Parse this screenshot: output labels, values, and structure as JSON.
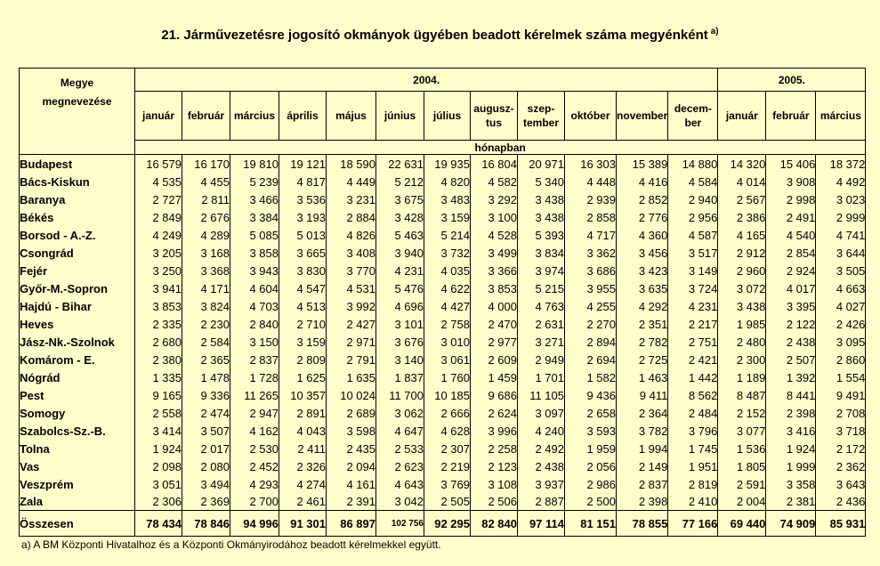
{
  "title": "21. Járművezetésre jogosító okmányok ügyében beadott kérelmek száma megyénként",
  "title_note": "a)",
  "header": {
    "county_label_1": "Megye",
    "county_label_2": "megnevezése",
    "year_2004": "2004.",
    "year_2005": "2005.",
    "unit": "hónapban",
    "months_2004": [
      "január",
      "február",
      "március",
      "április",
      "május",
      "június",
      "július",
      "augusz-\ntus",
      "szep-\ntember",
      "október",
      "november",
      "decem-\nber"
    ],
    "months_2005": [
      "január",
      "február",
      "március"
    ]
  },
  "rows": [
    {
      "name": "Budapest",
      "values": [
        "16 579",
        "16 170",
        "19 810",
        "19 121",
        "18 590",
        "22 631",
        "19 935",
        "16 804",
        "20 971",
        "16 303",
        "15 389",
        "14 880",
        "14 320",
        "15 406",
        "18 372"
      ]
    },
    {
      "name": "Bács-Kiskun",
      "values": [
        "4 535",
        "4 455",
        "5 239",
        "4 817",
        "4 449",
        "5 212",
        "4 820",
        "4 582",
        "5 340",
        "4 448",
        "4 416",
        "4 584",
        "4 014",
        "3 908",
        "4 492"
      ]
    },
    {
      "name": "Baranya",
      "values": [
        "2 727",
        "2 811",
        "3 466",
        "3 536",
        "3 231",
        "3 675",
        "3 483",
        "3 292",
        "3 438",
        "2 939",
        "2 852",
        "2 940",
        "2 567",
        "2 998",
        "3 023"
      ]
    },
    {
      "name": "Békés",
      "values": [
        "2 849",
        "2 676",
        "3 384",
        "3 193",
        "2 884",
        "3 428",
        "3 159",
        "3 100",
        "3 438",
        "2 858",
        "2 776",
        "2 956",
        "2 386",
        "2 491",
        "2 999"
      ]
    },
    {
      "name": "Borsod - A.-Z.",
      "values": [
        "4 249",
        "4 289",
        "5 085",
        "5 013",
        "4 826",
        "5 463",
        "5 214",
        "4 528",
        "5 393",
        "4 717",
        "4 360",
        "4 587",
        "4 165",
        "4 540",
        "4 741"
      ]
    },
    {
      "name": "Csongrád",
      "values": [
        "3 205",
        "3 168",
        "3 858",
        "3 665",
        "3 408",
        "3 940",
        "3 732",
        "3 499",
        "3 834",
        "3 362",
        "3 456",
        "3 517",
        "2 912",
        "2 854",
        "3 644"
      ]
    },
    {
      "name": "Fejér",
      "values": [
        "3 250",
        "3 368",
        "3 943",
        "3 830",
        "3 770",
        "4 231",
        "4 035",
        "3 366",
        "3 974",
        "3 686",
        "3 423",
        "3 149",
        "2 960",
        "2 924",
        "3 505"
      ]
    },
    {
      "name": "Győr-M.-Sopron",
      "values": [
        "3 941",
        "4 171",
        "4 604",
        "4 547",
        "4 531",
        "5 476",
        "4 622",
        "3 853",
        "5 215",
        "3 955",
        "3 635",
        "3 724",
        "3 072",
        "4 017",
        "4 663"
      ]
    },
    {
      "name": "Hajdú - Bihar",
      "values": [
        "3 853",
        "3 824",
        "4 703",
        "4 513",
        "3 992",
        "4 696",
        "4 427",
        "4 000",
        "4 763",
        "4 255",
        "4 292",
        "4 231",
        "3 438",
        "3 395",
        "4 027"
      ]
    },
    {
      "name": "Heves",
      "values": [
        "2 335",
        "2 230",
        "2 840",
        "2 710",
        "2 427",
        "3 101",
        "2 758",
        "2 470",
        "2 631",
        "2 270",
        "2 351",
        "2 217",
        "1 985",
        "2 122",
        "2 426"
      ]
    },
    {
      "name": "Jász-Nk.-Szolnok",
      "values": [
        "2 680",
        "2 584",
        "3 150",
        "3 159",
        "2 971",
        "3 676",
        "3 010",
        "2 977",
        "3 271",
        "2 894",
        "2 782",
        "2 751",
        "2 480",
        "2 438",
        "3 095"
      ]
    },
    {
      "name": "Komárom - E.",
      "values": [
        "2 380",
        "2 365",
        "2 837",
        "2 809",
        "2 791",
        "3 140",
        "3 061",
        "2 609",
        "2 949",
        "2 694",
        "2 725",
        "2 421",
        "2 300",
        "2 507",
        "2 860"
      ]
    },
    {
      "name": "Nógrád",
      "values": [
        "1 335",
        "1 478",
        "1 728",
        "1 625",
        "1 635",
        "1 837",
        "1 760",
        "1 459",
        "1 701",
        "1 582",
        "1 463",
        "1 442",
        "1 189",
        "1 392",
        "1 554"
      ]
    },
    {
      "name": "Pest",
      "values": [
        "9 165",
        "9 336",
        "11 265",
        "10 357",
        "10 024",
        "11 700",
        "10 185",
        "9 686",
        "11 105",
        "9 436",
        "9 411",
        "8 562",
        "8 487",
        "8 441",
        "9 491"
      ]
    },
    {
      "name": "Somogy",
      "values": [
        "2 558",
        "2 474",
        "2 947",
        "2 891",
        "2 689",
        "3 062",
        "2 666",
        "2 624",
        "3 097",
        "2 658",
        "2 364",
        "2 484",
        "2 152",
        "2 398",
        "2 708"
      ]
    },
    {
      "name": "Szabolcs-Sz.-B.",
      "values": [
        "3 414",
        "3 507",
        "4 162",
        "4 043",
        "3 598",
        "4 647",
        "4 628",
        "3 996",
        "4 240",
        "3 593",
        "3 782",
        "3 796",
        "3 077",
        "3 416",
        "3 718"
      ]
    },
    {
      "name": "Tolna",
      "values": [
        "1 924",
        "2 017",
        "2 530",
        "2 411",
        "2 435",
        "2 533",
        "2 307",
        "2 258",
        "2 492",
        "1 959",
        "1 994",
        "1 745",
        "1 536",
        "1 924",
        "2 172"
      ]
    },
    {
      "name": "Vas",
      "values": [
        "2 098",
        "2 080",
        "2 452",
        "2 326",
        "2 094",
        "2 623",
        "2 219",
        "2 123",
        "2 438",
        "2 056",
        "2 149",
        "1 951",
        "1 805",
        "1 999",
        "2 362"
      ]
    },
    {
      "name": "Veszprém",
      "values": [
        "3 051",
        "3 494",
        "4 293",
        "4 274",
        "4 161",
        "4 643",
        "3 769",
        "3 108",
        "3 937",
        "2 986",
        "2 837",
        "2 819",
        "2 591",
        "3 358",
        "3 643"
      ]
    },
    {
      "name": "Zala",
      "values": [
        "2 306",
        "2 369",
        "2 700",
        "2 461",
        "2 391",
        "3 042",
        "2 505",
        "2 506",
        "2 887",
        "2 500",
        "2 398",
        "2 410",
        "2 004",
        "2 381",
        "2 436"
      ]
    }
  ],
  "total": {
    "name": "Összesen",
    "values": [
      "78 434",
      "78 846",
      "94 996",
      "91 301",
      "86 897",
      "102 756",
      "92 295",
      "82 840",
      "97 114",
      "81 151",
      "78 855",
      "77 166",
      "69 440",
      "74 909",
      "85 931"
    ]
  },
  "footnote": "a) A BM Központi Hivatalhoz és a Központi Okmányirodához beadott kérelmekkel együtt."
}
